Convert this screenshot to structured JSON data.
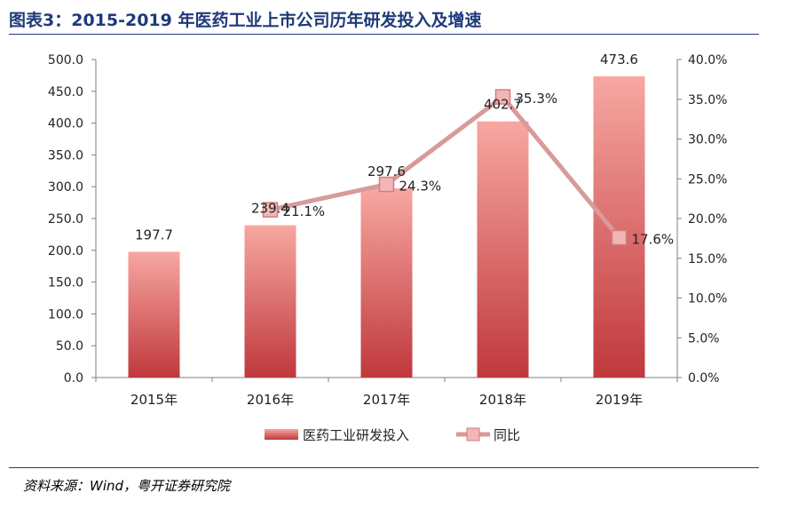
{
  "figure_title": "图表3：2015-2019 年医药工业上市公司历年研发投入及增速",
  "source": "资料来源：Wind，粤开证券研究院",
  "colors": {
    "title": "#1f3a7a",
    "bar_top": "#f7a7a1",
    "bar_bottom": "#c0383c",
    "line": "#d89a9a",
    "marker_fill": "#f2b6b6",
    "marker_stroke": "#d07e7e",
    "axis": "#7f7f7f"
  },
  "chart_data": {
    "type": "bar",
    "categories": [
      "2015年",
      "2016年",
      "2017年",
      "2018年",
      "2019年"
    ],
    "series": [
      {
        "name": "医药工业研发投入",
        "type": "bar",
        "axis": "left",
        "values": [
          197.7,
          239.4,
          297.6,
          402.7,
          473.6
        ],
        "labels": [
          "197.7",
          "239.4",
          "297.6",
          "402.7",
          "473.6"
        ]
      },
      {
        "name": "同比",
        "type": "line",
        "axis": "right",
        "values": [
          null,
          21.1,
          24.3,
          35.3,
          17.6
        ],
        "labels": [
          "",
          "21.1%",
          "24.3%",
          "35.3%",
          "17.6%"
        ]
      }
    ],
    "y_left": {
      "min": 0,
      "max": 500,
      "ticks": [
        0,
        50,
        100,
        150,
        200,
        250,
        300,
        350,
        400,
        450,
        500
      ],
      "tick_labels": [
        "0.0",
        "50.0",
        "100.0",
        "150.0",
        "200.0",
        "250.0",
        "300.0",
        "350.0",
        "400.0",
        "450.0",
        "500.0"
      ]
    },
    "y_right": {
      "min": 0,
      "max": 40,
      "ticks": [
        0,
        5,
        10,
        15,
        20,
        25,
        30,
        35,
        40
      ],
      "tick_labels": [
        "0.0%",
        "5.0%",
        "10.0%",
        "15.0%",
        "20.0%",
        "25.0%",
        "30.0%",
        "35.0%",
        "40.0%"
      ]
    },
    "legend_position": "bottom-center",
    "grid": false
  }
}
